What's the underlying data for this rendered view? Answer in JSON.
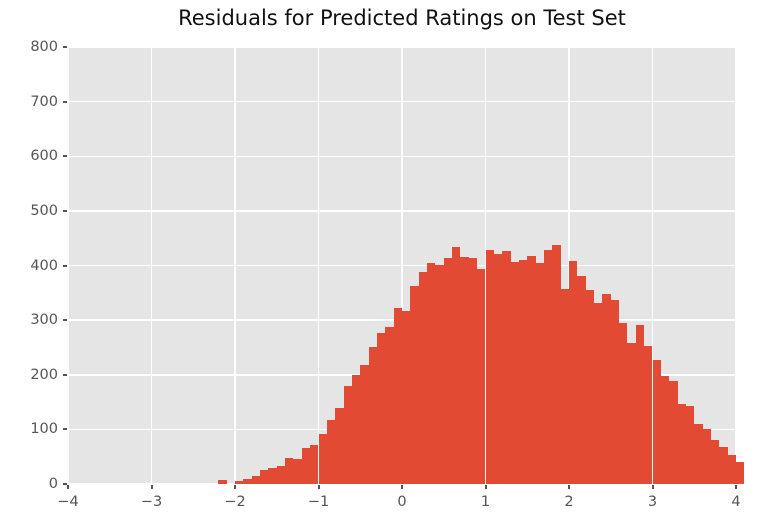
{
  "title": "Residuals for Predicted Ratings on Test Set",
  "colors": {
    "bar": "#e24a33",
    "plot_background": "#e5e5e5",
    "gridline": "#ffffff",
    "tick_label": "#555555",
    "title_text": "#111111",
    "figure_background": "#ffffff"
  },
  "chart_data": {
    "type": "bar",
    "subtype": "histogram",
    "title": "Residuals for Predicted Ratings on Test Set",
    "xlabel": "",
    "ylabel": "",
    "xlim": [
      -4,
      4
    ],
    "ylim": [
      0,
      800
    ],
    "grid": true,
    "legend": false,
    "x_tick_labels": [
      "−4",
      "−3",
      "−2",
      "−1",
      "0",
      "1",
      "2",
      "3",
      "4"
    ],
    "x_tick_values": [
      -4,
      -3,
      -2,
      -1,
      0,
      1,
      2,
      3,
      4
    ],
    "y_tick_labels": [
      "0",
      "100",
      "200",
      "300",
      "400",
      "500",
      "600",
      "700",
      "800"
    ],
    "y_tick_values": [
      0,
      100,
      200,
      300,
      400,
      500,
      600,
      700,
      800
    ],
    "bin_start": -4.0,
    "bin_width": 0.1,
    "counts": [
      0,
      0,
      0,
      0,
      0,
      0,
      0,
      0,
      0,
      0,
      0,
      0,
      0,
      0,
      0,
      0,
      0,
      0,
      7,
      0,
      6,
      9,
      14,
      26,
      29,
      33,
      48,
      46,
      66,
      72,
      92,
      118,
      140,
      179,
      200,
      217,
      250,
      277,
      288,
      322,
      317,
      362,
      389,
      405,
      401,
      413,
      434,
      416,
      414,
      394,
      429,
      421,
      426,
      406,
      411,
      417,
      404,
      429,
      438,
      357,
      409,
      380,
      355,
      331,
      347,
      337,
      294,
      258,
      292,
      253,
      227,
      197,
      189,
      146,
      142,
      110,
      101,
      81,
      68,
      53,
      41
    ]
  }
}
